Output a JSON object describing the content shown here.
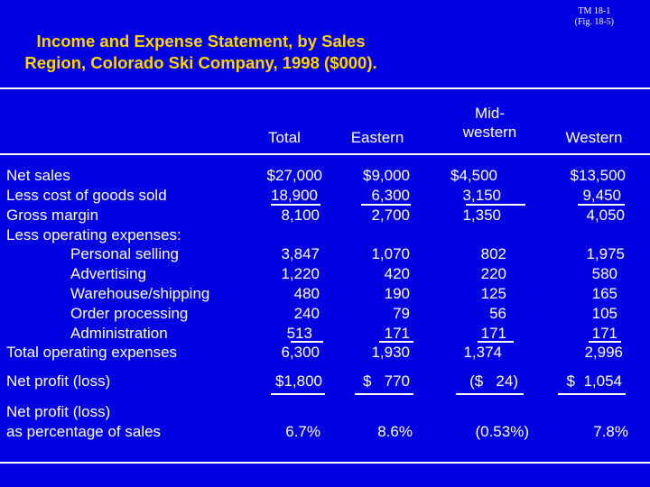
{
  "tm_label": "TM 18-1",
  "fig_label": "(Fig. 18-5)",
  "title_line1": "Income and Expense Statement, by Sales",
  "title_line2": "Region, Colorado Ski Company, 1998 ($000).",
  "headers": {
    "total": "Total",
    "eastern": "Eastern",
    "midwestern_1": "Mid-",
    "midwestern_2": "western",
    "western": "Western"
  },
  "rows": {
    "net_sales": {
      "label": "Net sales",
      "total": "$27,000",
      "eastern": "$9,000",
      "midwestern": "$4,500",
      "western": "$13,500"
    },
    "cogs": {
      "label": "Less cost of goods sold",
      "total": "18,900",
      "eastern": "6,300",
      "midwestern": "3,150",
      "western": "9,450"
    },
    "gross_margin": {
      "label": "Gross margin",
      "total": "8,100",
      "eastern": "2,700",
      "midwestern": "1,350",
      "western": "4,050"
    },
    "opex_header": {
      "label": "Less operating expenses:"
    },
    "personal_selling": {
      "label": "Personal selling",
      "total": "3,847",
      "eastern": "1,070",
      "midwestern": "802",
      "western": "1,975"
    },
    "advertising": {
      "label": "Advertising",
      "total": "1,220",
      "eastern": "420",
      "midwestern": "220",
      "western": "580"
    },
    "warehouse": {
      "label": "Warehouse/shipping",
      "total": "480",
      "eastern": "190",
      "midwestern": "125",
      "western": "165"
    },
    "order_processing": {
      "label": "Order processing",
      "total": "240",
      "eastern": "79",
      "midwestern": "56",
      "western": "105"
    },
    "administration": {
      "label": "Administration",
      "total": "513",
      "eastern": "171",
      "midwestern": "171",
      "western": "171"
    },
    "total_opex": {
      "label": "Total operating expenses",
      "total": "6,300",
      "eastern": "1,930",
      "midwestern": "1,374",
      "western": "2,996"
    },
    "net_profit": {
      "label": "Net profit (loss)",
      "total": "$1,800",
      "eastern": "$   770",
      "midwestern": "($   24)",
      "western": "$  1,054"
    },
    "pct_line1": {
      "label": "Net profit (loss)"
    },
    "pct_line2": {
      "label": "as percentage of sales",
      "total": "6.7%",
      "eastern": "8.6%",
      "midwestern": "(0.53%)",
      "western": "7.8%"
    }
  },
  "colors": {
    "background": "#0000e0",
    "title": "#ffd400",
    "text": "#ffffff"
  }
}
